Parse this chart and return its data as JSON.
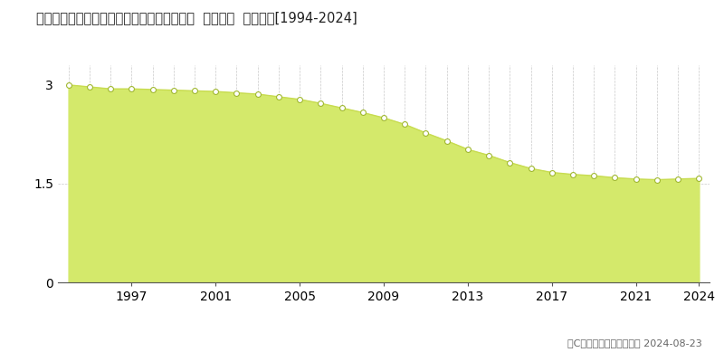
{
  "title": "北海道上川郡清水町南２条西４丁目７番２外  地価公示  地価推移[1994-2024]",
  "years": [
    1994,
    1995,
    1996,
    1997,
    1998,
    1999,
    2000,
    2001,
    2002,
    2003,
    2004,
    2005,
    2006,
    2007,
    2008,
    2009,
    2010,
    2011,
    2012,
    2013,
    2014,
    2015,
    2016,
    2017,
    2018,
    2019,
    2020,
    2021,
    2022,
    2023,
    2024
  ],
  "values": [
    3.0,
    2.97,
    2.94,
    2.94,
    2.93,
    2.92,
    2.91,
    2.9,
    2.88,
    2.86,
    2.82,
    2.78,
    2.72,
    2.65,
    2.58,
    2.5,
    2.4,
    2.27,
    2.15,
    2.02,
    1.93,
    1.82,
    1.73,
    1.67,
    1.64,
    1.62,
    1.59,
    1.57,
    1.56,
    1.57,
    1.58
  ],
  "fill_color": "#d4e96b",
  "line_color": "#c8dc50",
  "marker_facecolor": "#ffffff",
  "marker_edgecolor": "#a0b830",
  "grid_color": "#bbbbbb",
  "bg_color": "#ffffff",
  "yticks": [
    0,
    1.5,
    3
  ],
  "ylim": [
    0,
    3.3
  ],
  "xlim": [
    1993.5,
    2024.5
  ],
  "xtick_labels": [
    "1997",
    "2001",
    "2005",
    "2009",
    "2013",
    "2017",
    "2021",
    "2024"
  ],
  "xtick_positions": [
    1997,
    2001,
    2005,
    2009,
    2013,
    2017,
    2021,
    2024
  ],
  "copyright_text": "（C）土地価格ドットコム 2024-08-23"
}
